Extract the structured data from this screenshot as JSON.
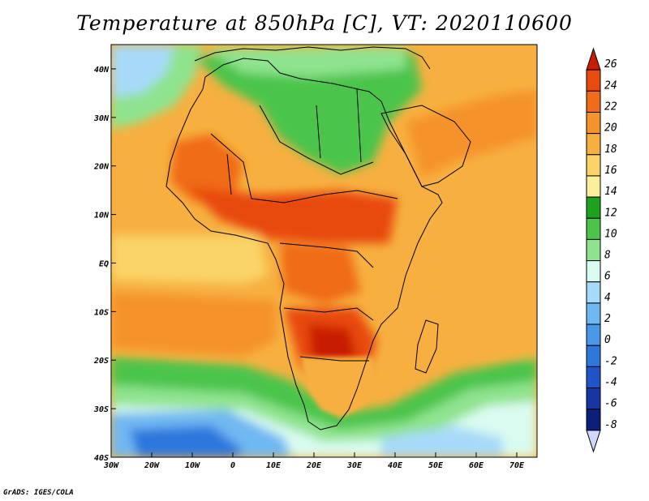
{
  "title": "Temperature at 850hPa [C], VT: 2020110600",
  "credit": "GrADS: IGES/COLA",
  "map": {
    "lon_range": [
      -30,
      75
    ],
    "lat_range": [
      -40,
      45
    ],
    "lon_ticks": [
      {
        "value": -30,
        "label": "30W"
      },
      {
        "value": -20,
        "label": "20W"
      },
      {
        "value": -10,
        "label": "10W"
      },
      {
        "value": 0,
        "label": "0"
      },
      {
        "value": 10,
        "label": "10E"
      },
      {
        "value": 20,
        "label": "20E"
      },
      {
        "value": 30,
        "label": "30E"
      },
      {
        "value": 40,
        "label": "40E"
      },
      {
        "value": 50,
        "label": "50E"
      },
      {
        "value": 60,
        "label": "60E"
      },
      {
        "value": 70,
        "label": "70E"
      }
    ],
    "lat_ticks": [
      {
        "value": 40,
        "label": "40N"
      },
      {
        "value": 30,
        "label": "30N"
      },
      {
        "value": 20,
        "label": "20N"
      },
      {
        "value": 10,
        "label": "10N"
      },
      {
        "value": 0,
        "label": "EQ"
      },
      {
        "value": -10,
        "label": "10S"
      },
      {
        "value": -20,
        "label": "20S"
      },
      {
        "value": -30,
        "label": "30S"
      },
      {
        "value": -40,
        "label": "40S"
      }
    ]
  },
  "colorbar": {
    "labels": [
      "26",
      "24",
      "22",
      "20",
      "18",
      "16",
      "14",
      "12",
      "10",
      "8",
      "6",
      "4",
      "2",
      "0",
      "-2",
      "-4",
      "-6",
      "-8"
    ],
    "colors": [
      "#c81e00",
      "#e84a10",
      "#f06c18",
      "#f5932a",
      "#f7b040",
      "#fad468",
      "#fbee9c",
      "#1ea11e",
      "#4cc44c",
      "#8fe38f",
      "#dafbf0",
      "#a7daf8",
      "#6fb8f2",
      "#4a99e8",
      "#2e77dc",
      "#1f53c8",
      "#1636a6",
      "#0a1f78",
      "#cfd8ff"
    ]
  }
}
